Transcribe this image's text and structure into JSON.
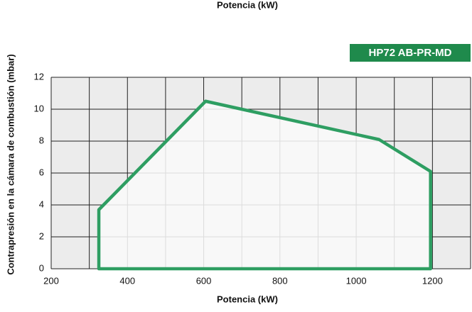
{
  "chart_data": {
    "type": "area",
    "title": "Potencia (kW)",
    "badge": "HP72 AB-PR-MD",
    "xlabel": "Potencia (kW)",
    "ylabel": "Contrapresión en la cámara de combustión (mbar)",
    "series": [
      {
        "name": "HP72 AB-PR-MD",
        "color": "#2e9e62",
        "x": [
          325,
          325,
          605,
          1060,
          1195,
          1195
        ],
        "values": [
          0,
          3.7,
          10.5,
          8.1,
          6.1,
          0
        ]
      }
    ],
    "xlim": [
      200,
      1300
    ],
    "xticks": [
      200,
      400,
      600,
      800,
      1000,
      1200
    ],
    "xgrid": [
      200,
      300,
      400,
      500,
      600,
      700,
      800,
      900,
      1000,
      1100,
      1200,
      1300
    ],
    "ylim": [
      0,
      12
    ],
    "yticks": [
      0,
      2,
      4,
      6,
      8,
      10,
      12
    ],
    "grid": true
  }
}
